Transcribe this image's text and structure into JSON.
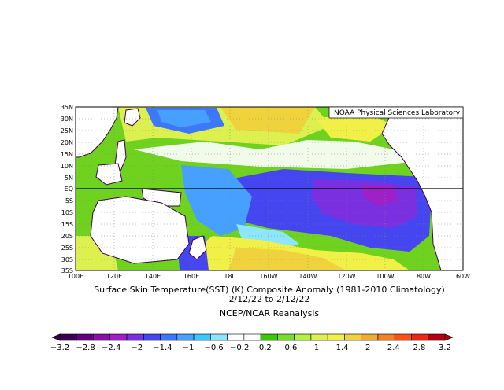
{
  "map": {
    "credit": "NOAA Physical Sciences Laboratory",
    "lat_labels": [
      "35N",
      "30N",
      "25N",
      "20N",
      "15N",
      "10N",
      "5N",
      "EQ",
      "5S",
      "10S",
      "15S",
      "20S",
      "25S",
      "30S",
      "35S"
    ],
    "lon_labels": [
      "100E",
      "120E",
      "140E",
      "160E",
      "180",
      "160W",
      "140W",
      "120W",
      "100W",
      "80W",
      "60W"
    ]
  },
  "caption": {
    "line1": "Surface Skin Temperature(SST) (K) Composite Anomaly (1981-2010 Climatology)",
    "line2": "2/12/22   to 2/12/22",
    "line3": "NCEP/NCAR Reanalysis"
  },
  "colorbar": {
    "labels": [
      "-3.2",
      "-2.8",
      "-2.4",
      "-2",
      "-1.4",
      "-1",
      "-0.6",
      "-0.2",
      "0.2",
      "0.6",
      "1",
      "1.4",
      "2",
      "2.4",
      "2.8",
      "3.2"
    ],
    "colors": [
      "#3b0050",
      "#640080",
      "#8b0fa8",
      "#a020c8",
      "#7a30e0",
      "#4646f0",
      "#3c78ff",
      "#46a0ff",
      "#3cc8ff",
      "#8ce6ff",
      "#ffffff",
      "#ffffff",
      "#3cc800",
      "#78dc28",
      "#b4f03c",
      "#dcf050",
      "#f0f046",
      "#f0d23c",
      "#f0aa32",
      "#f08228",
      "#ff5014",
      "#e62814",
      "#b40014"
    ]
  }
}
